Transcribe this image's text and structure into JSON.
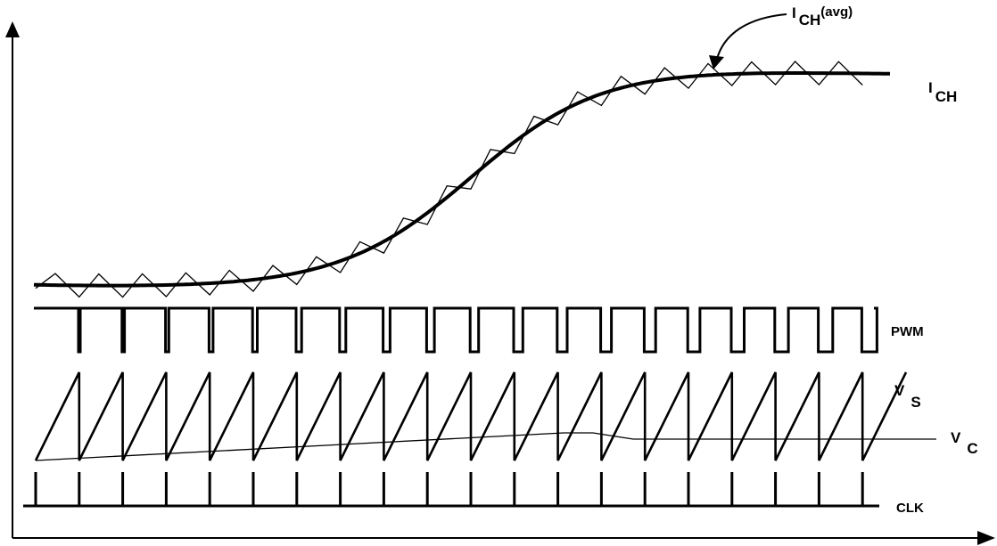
{
  "labels": {
    "ich_avg_main": "I",
    "ich_avg_sub": "CH",
    "ich_avg_suffix": "(avg)",
    "ich_main": "I",
    "ich_sub": "CH",
    "pwm": "PWM",
    "vs_main": "V",
    "vs_sub": "S",
    "vc_main": "V",
    "vc_sub": "C",
    "clk": "CLK"
  }
}
